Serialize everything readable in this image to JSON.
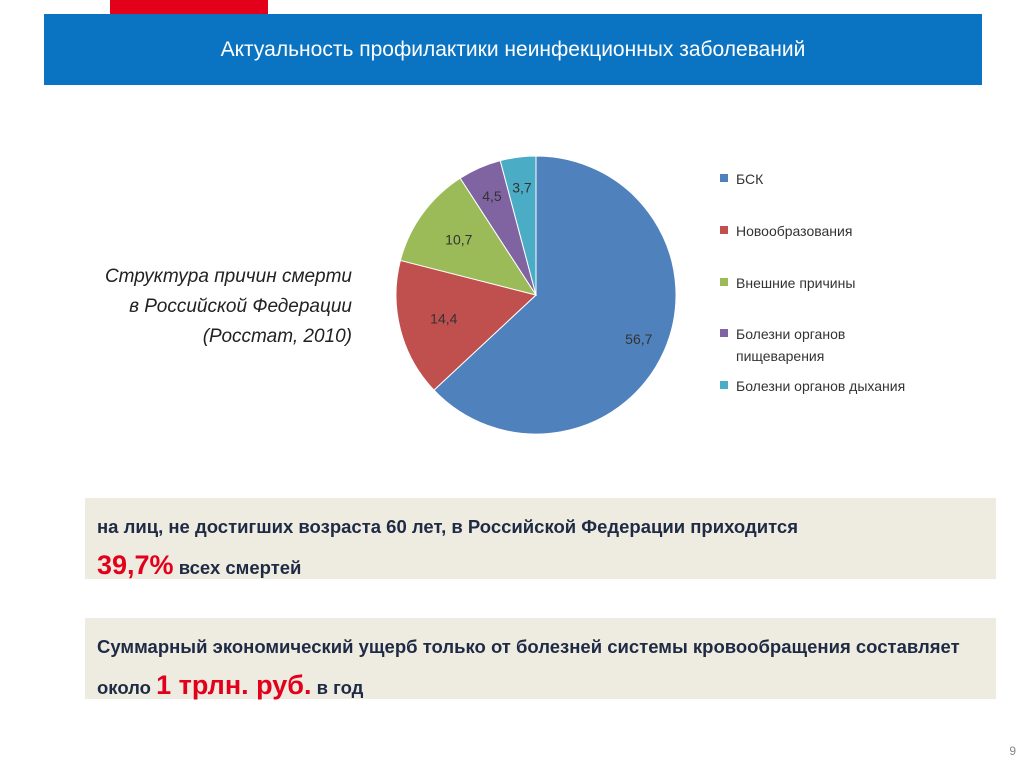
{
  "header": {
    "title": "Актуальность профилактики неинфекционных заболеваний"
  },
  "caption": {
    "line1": "Структура причин смерти",
    "line2": "в Российской Федерации",
    "line3": "(Росстат, 2010)"
  },
  "chart_data": {
    "type": "pie",
    "title": "",
    "start": "12 o'clock",
    "direction": "clockwise",
    "slices": [
      {
        "label": "БСК",
        "value": 56.7,
        "display": "56,7",
        "color": "#4f81bd"
      },
      {
        "label": "Новообразования",
        "value": 14.4,
        "display": "14,4",
        "color": "#c0504d"
      },
      {
        "label": "Внешние причины",
        "value": 10.7,
        "display": "10,7",
        "color": "#9bbb59"
      },
      {
        "label": "Болезни органов пищеварения",
        "value": 4.5,
        "display": "4,5",
        "color": "#8064a2"
      },
      {
        "label": "Болезни органов дыхания",
        "value": 3.7,
        "display": "3,7",
        "color": "#4bacc6"
      }
    ],
    "legend_placement": "right"
  },
  "legend": {
    "items": [
      {
        "label": "БСК"
      },
      {
        "label": "Новообразования"
      },
      {
        "label": "Внешние причины"
      },
      {
        "label": "Болезни органов пищеварения"
      },
      {
        "label": "Болезни органов дыхания"
      }
    ]
  },
  "box1": {
    "text_before": "на лиц, не достигших возраста 60 лет, в Российской Федерации приходится",
    "highlight": "39,7%",
    "text_after": "всех смертей"
  },
  "box2": {
    "text_before": "Суммарный экономический ущерб только от болезней системы кровообращения составляет около",
    "highlight": "1 трлн. руб.",
    "text_after": "в год"
  },
  "page_number": "9",
  "colors": {
    "header_bg": "#0b74c2",
    "accent_red": "#e3001b",
    "box_bg": "#eeece1"
  }
}
